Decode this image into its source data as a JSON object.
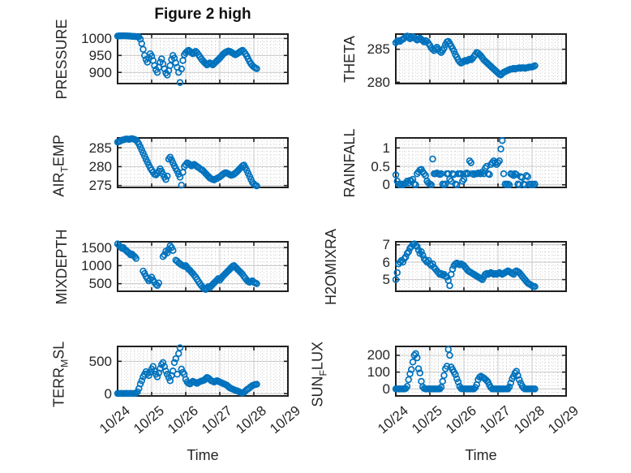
{
  "title": "Figure 2 high",
  "xlabel": "Time",
  "colors": {
    "marker": "#0072BD",
    "axis": "#1f1f1f",
    "grid_major": "#c8c8c8",
    "grid_minor": "#cfcfcf",
    "text": "#262626"
  },
  "x_axis": {
    "label": "Time",
    "tick_labels": [
      "10/24",
      "10/25",
      "10/26",
      "10/27",
      "10/28",
      "10/29"
    ],
    "range_days": [
      0,
      5
    ],
    "dt_hours": 1,
    "minor_step_days": 0.125
  },
  "chart_data": [
    {
      "id": "pressure",
      "series_name": "PRESSURE",
      "type": "scatter",
      "ylabel_parts": [
        {
          "text": "PRESSURE",
          "sub": false
        }
      ],
      "ylim": [
        867,
        1013
      ],
      "yticks": [
        900,
        950,
        1000
      ],
      "ytick_labels": [
        "900",
        "950",
        "1000"
      ],
      "minor_y_step": 10,
      "y_hourly": [
        1007,
        1007.5,
        1008,
        1008,
        1008,
        1008,
        1007.5,
        1007.5,
        1007,
        1007,
        1006.5,
        1006,
        1006,
        1005.5,
        1005,
        1005,
        998,
        985,
        968,
        950,
        938,
        930,
        942,
        955,
        948,
        935,
        920,
        908,
        900,
        915,
        930,
        940,
        925,
        910,
        898,
        892,
        905,
        920,
        938,
        950,
        942,
        928,
        915,
        900,
        870,
        910,
        935,
        952,
        958,
        962,
        965,
        962,
        958,
        955,
        958,
        962,
        958,
        952,
        946,
        940,
        935,
        930,
        926,
        922,
        925,
        928,
        925,
        922,
        926,
        930,
        934,
        938,
        942,
        947,
        952,
        956,
        959,
        961,
        963,
        962,
        960,
        957,
        954,
        952,
        954,
        957,
        960,
        963,
        965,
        961,
        955,
        948,
        940,
        932,
        925,
        920,
        916,
        913,
        911
      ]
    },
    {
      "id": "theta",
      "series_name": "THETA",
      "type": "scatter",
      "ylabel_parts": [
        {
          "text": "THETA",
          "sub": false
        }
      ],
      "ylim": [
        279.8,
        287.3
      ],
      "yticks": [
        280,
        285
      ],
      "ytick_labels": [
        "280",
        "285"
      ],
      "minor_y_step": 0.5,
      "y_hourly": [
        286.0,
        286.2,
        286.3,
        286.2,
        286.4,
        286.5,
        286.7,
        286.9,
        287.0,
        286.8,
        286.6,
        286.7,
        286.9,
        286.8,
        286.6,
        286.4,
        286.5,
        286.7,
        286.5,
        286.3,
        286.1,
        286.3,
        286.2,
        285.9,
        285.6,
        285.2,
        285.0,
        284.8,
        285.1,
        285.3,
        285.0,
        284.7,
        284.5,
        284.8,
        285.2,
        285.7,
        286.1,
        286.2,
        285.9,
        285.5,
        285.1,
        284.7,
        284.2,
        283.8,
        283.4,
        283.1,
        282.9,
        283.0,
        283.2,
        283.3,
        283.2,
        283.4,
        283.5,
        283.4,
        283.6,
        283.9,
        284.2,
        284.5,
        284.4,
        284.2,
        284.0,
        283.7,
        283.4,
        283.2,
        283.0,
        282.8,
        282.6,
        282.4,
        282.2,
        282.0,
        281.8,
        281.6,
        281.4,
        281.2,
        281.1,
        281.3,
        281.5,
        281.6,
        281.7,
        281.8,
        281.9,
        282.0,
        282.0,
        282.1,
        282.0,
        282.1,
        282.1,
        282.2,
        282.1,
        282.2,
        282.2,
        282.1,
        282.2,
        282.2,
        282.3,
        282.3,
        282.3,
        282.4,
        282.5
      ]
    },
    {
      "id": "air-temp",
      "series_name": "AIR_TEMP",
      "type": "scatter",
      "ylabel_parts": [
        {
          "text": "AIR",
          "sub": false
        },
        {
          "text": "T",
          "sub": true
        },
        {
          "text": "EMP",
          "sub": false
        }
      ],
      "ylim": [
        274.5,
        287.6
      ],
      "yticks": [
        275,
        280,
        285
      ],
      "ytick_labels": [
        "275",
        "280",
        "285"
      ],
      "minor_y_step": 1,
      "y_hourly": [
        286.5,
        286.6,
        286.8,
        287.0,
        287.1,
        287.2,
        287.3,
        287.3,
        287.2,
        287.3,
        287.4,
        287.3,
        287.2,
        287.0,
        286.6,
        286.0,
        285.2,
        284.4,
        283.6,
        282.8,
        282.0,
        281.2,
        280.4,
        279.7,
        279.1,
        278.5,
        278.0,
        277.8,
        278.2,
        278.8,
        279.4,
        278.8,
        278.0,
        277.2,
        276.6,
        277.5,
        282.0,
        282.5,
        281.8,
        281.0,
        280.2,
        279.5,
        278.8,
        278.0,
        277.2,
        275.1,
        278.5,
        280.0,
        280.5,
        281.0,
        280.8,
        280.5,
        280.2,
        280.4,
        280.6,
        280.3,
        280.0,
        279.8,
        279.5,
        279.2,
        279.0,
        278.6,
        278.2,
        277.8,
        277.4,
        277.0,
        276.8,
        276.6,
        276.5,
        276.7,
        276.9,
        277.1,
        277.3,
        277.6,
        277.9,
        278.2,
        278.4,
        278.3,
        278.1,
        277.9,
        277.7,
        277.8,
        278.0,
        278.3,
        278.6,
        279.0,
        279.4,
        279.8,
        280.2,
        280.4,
        279.8,
        279.0,
        278.2,
        277.4,
        276.6,
        275.8,
        275.4,
        275.1,
        274.9
      ]
    },
    {
      "id": "rainfall",
      "series_name": "RAINFALL",
      "type": "scatter",
      "ylabel_parts": [
        {
          "text": "RAINFALL",
          "sub": false
        }
      ],
      "ylim": [
        -0.07,
        1.27
      ],
      "yticks": [
        0,
        0.5,
        1
      ],
      "ytick_labels": [
        "0",
        "0.5",
        "1"
      ],
      "minor_y_step": 0.1,
      "y_hourly": [
        0.27,
        0.1,
        0.02,
        0,
        0.02,
        0,
        0.02,
        0.05,
        0.1,
        0.05,
        0.12,
        0.1,
        0.15,
        0.02,
        0,
        0.3,
        0.35,
        0.4,
        0.42,
        0.35,
        0.3,
        0.25,
        0.1,
        0.05,
        0.02,
        0,
        0.7,
        0.3,
        0.3,
        0.32,
        0.3,
        0.28,
        0.3,
        0.02,
        0,
        0.02,
        0.3,
        0.3,
        0.15,
        0.1,
        0.3,
        0.28,
        0.02,
        0,
        0.3,
        0.3,
        0.3,
        0.1,
        0.15,
        0.3,
        0.32,
        0.3,
        0.65,
        0.6,
        0.3,
        0.28,
        0.3,
        0.3,
        0.32,
        0.3,
        0.3,
        0.35,
        0.3,
        0.45,
        0.5,
        0.3,
        0.28,
        0.55,
        0.6,
        0.65,
        0.6,
        0.55,
        0.6,
        0.65,
        0.97,
        1.2,
        0.3,
        0.02,
        0,
        0.02,
        0,
        0.3,
        0.28,
        0.25,
        0.3,
        0.28,
        0.02,
        0,
        0.22,
        0.2,
        0.02,
        0,
        0.25,
        0.22,
        0.02,
        0,
        0.02,
        0,
        0.02
      ]
    },
    {
      "id": "mixdepth",
      "series_name": "MIXDEPTH",
      "type": "scatter",
      "ylabel_parts": [
        {
          "text": "MIXDEPTH",
          "sub": false
        }
      ],
      "ylim": [
        290,
        1660
      ],
      "yticks": [
        500,
        1000,
        1500
      ],
      "ytick_labels": [
        "500",
        "1000",
        "1500"
      ],
      "minor_y_step": 100,
      "y_hourly": [
        1600,
        1560,
        1520,
        1480,
        1500,
        1450,
        1420,
        1380,
        1350,
        1300,
        1320,
        1280,
        1250,
        1200,
        null,
        null,
        null,
        null,
        850,
        780,
        700,
        640,
        580,
        620,
        680,
        600,
        540,
        480,
        450,
        520,
        null,
        null,
        1250,
        1300,
        1400,
        1350,
        1450,
        1550,
        1500,
        1420,
        null,
        1150,
        1120,
        1080,
        1050,
        1020,
        1000,
        980,
        1000,
        950,
        900,
        870,
        820,
        780,
        730,
        680,
        620,
        560,
        500,
        450,
        400,
        360,
        340,
        380,
        420,
        390,
        440,
        480,
        520,
        560,
        600,
        640,
        600,
        650,
        700,
        740,
        780,
        820,
        860,
        900,
        940,
        980,
        1000,
        960,
        920,
        880,
        840,
        800,
        760,
        700,
        650,
        600,
        560,
        540,
        560,
        580,
        540,
        520,
        500
      ]
    },
    {
      "id": "h2omixra",
      "series_name": "H2OMIXRA",
      "type": "scatter",
      "ylabel_parts": [
        {
          "text": "H2OMIXRA",
          "sub": false
        }
      ],
      "ylim": [
        4.33,
        7.17
      ],
      "yticks": [
        5,
        6,
        7
      ],
      "ytick_labels": [
        "5",
        "6",
        "7"
      ],
      "minor_y_step": 0.2,
      "y_hourly": [
        5.0,
        5.4,
        5.9,
        6.0,
        6.1,
        6.0,
        6.2,
        6.3,
        6.5,
        6.6,
        6.8,
        6.9,
        7.0,
        7.05,
        6.95,
        6.9,
        6.7,
        6.5,
        6.6,
        6.4,
        6.2,
        6.1,
        6.0,
        6.1,
        5.9,
        5.8,
        5.9,
        5.7,
        5.6,
        5.5,
        5.4,
        5.3,
        5.35,
        5.25,
        5.3,
        5.2,
        5.15,
        4.95,
        4.65,
        5.3,
        5.6,
        5.8,
        5.9,
        5.95,
        5.9,
        5.85,
        5.9,
        5.85,
        5.8,
        5.7,
        5.6,
        5.5,
        5.45,
        5.4,
        5.35,
        5.3,
        5.25,
        5.2,
        5.15,
        5.1,
        5.05,
        5.0,
        5.15,
        5.3,
        5.35,
        5.3,
        5.35,
        5.4,
        5.35,
        5.3,
        5.35,
        5.3,
        5.35,
        5.4,
        5.35,
        5.3,
        5.35,
        5.4,
        5.45,
        5.5,
        5.45,
        5.4,
        5.35,
        5.3,
        5.45,
        5.5,
        5.45,
        5.4,
        5.3,
        5.2,
        5.1,
        5.0,
        4.9,
        4.8,
        4.75,
        4.7,
        4.65,
        4.6,
        4.6
      ]
    },
    {
      "id": "terr-msl",
      "series_name": "TERR_MSL",
      "type": "scatter",
      "ylabel_parts": [
        {
          "text": "TERR",
          "sub": false
        },
        {
          "text": "M",
          "sub": true
        },
        {
          "text": "SL",
          "sub": false
        }
      ],
      "ylim": [
        -35,
        730
      ],
      "yticks": [
        0,
        500
      ],
      "ytick_labels": [
        "0",
        "500"
      ],
      "minor_y_step": 50,
      "y_hourly": [
        3,
        2,
        4,
        3,
        2,
        3,
        4,
        2,
        3,
        4,
        3,
        2,
        3,
        10,
        30,
        80,
        150,
        200,
        260,
        300,
        340,
        310,
        280,
        330,
        380,
        420,
        350,
        300,
        260,
        320,
        390,
        450,
        480,
        420,
        350,
        300,
        250,
        200,
        280,
        350,
        480,
        540,
        300,
        620,
        710,
        380,
        330,
        300,
        220,
        180,
        160,
        150,
        170,
        190,
        180,
        170,
        160,
        175,
        185,
        195,
        200,
        210,
        230,
        250,
        240,
        220,
        200,
        190,
        180,
        190,
        200,
        190,
        180,
        170,
        160,
        150,
        140,
        130,
        110,
        90,
        80,
        70,
        60,
        50,
        45,
        35,
        25,
        15,
        10,
        20,
        40,
        60,
        75,
        90,
        110,
        125,
        135,
        140,
        145
      ]
    },
    {
      "id": "sun-flux",
      "series_name": "SUN_FLUX",
      "type": "scatter",
      "ylabel_parts": [
        {
          "text": "SUN",
          "sub": false
        },
        {
          "text": "F",
          "sub": true
        },
        {
          "text": "LUX",
          "sub": false
        }
      ],
      "ylim": [
        -42,
        253
      ],
      "yticks": [
        0,
        100,
        200
      ],
      "ytick_labels": [
        "0",
        "100",
        "200"
      ],
      "minor_y_step": 20,
      "y_hourly": [
        0,
        0,
        0,
        0,
        0,
        0,
        0,
        2,
        15,
        55,
        90,
        115,
        160,
        200,
        210,
        185,
        120,
        95,
        45,
        12,
        2,
        0,
        0,
        0,
        0,
        0,
        0,
        0,
        0,
        0,
        0,
        0,
        10,
        45,
        80,
        120,
        135,
        235,
        200,
        130,
        115,
        100,
        85,
        60,
        40,
        15,
        2,
        0,
        0,
        0,
        0,
        0,
        0,
        0,
        0,
        0,
        8,
        25,
        55,
        70,
        75,
        70,
        65,
        58,
        50,
        40,
        22,
        8,
        0,
        0,
        0,
        0,
        0,
        0,
        0,
        0,
        0,
        0,
        0,
        0,
        12,
        35,
        60,
        75,
        95,
        105,
        80,
        55,
        35,
        18,
        6,
        0,
        0,
        0,
        0,
        0,
        0,
        0,
        0
      ]
    }
  ]
}
